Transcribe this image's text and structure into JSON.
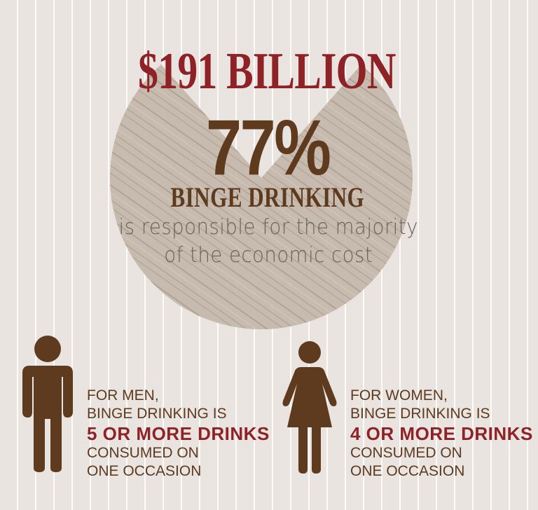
{
  "colors": {
    "background": "#e9e4df",
    "accent_red": "#8f2227",
    "brown": "#5e3a1f",
    "pie": "#c5b8ac",
    "gray_text": "#6b625c"
  },
  "headline": {
    "amount": "$191 BILLION",
    "percent": "77%",
    "subject": "BINGE DRINKING",
    "desc_line1": "is responsible for the majority",
    "desc_line2": "of the economic cost"
  },
  "pie": {
    "share_percent": 77
  },
  "men": {
    "icon": "man-icon",
    "line1": "FOR MEN,",
    "line2": "BINGE DRINKING IS",
    "highlight": "5 OR MORE DRINKS",
    "line4": "CONSUMED ON",
    "line5": "ONE OCCASION"
  },
  "women": {
    "icon": "woman-icon",
    "line1": "FOR WOMEN,",
    "line2": "BINGE DRINKING IS",
    "highlight": "4 OR MORE DRINKS",
    "line4": "CONSUMED ON",
    "line5": "ONE OCCASION"
  }
}
